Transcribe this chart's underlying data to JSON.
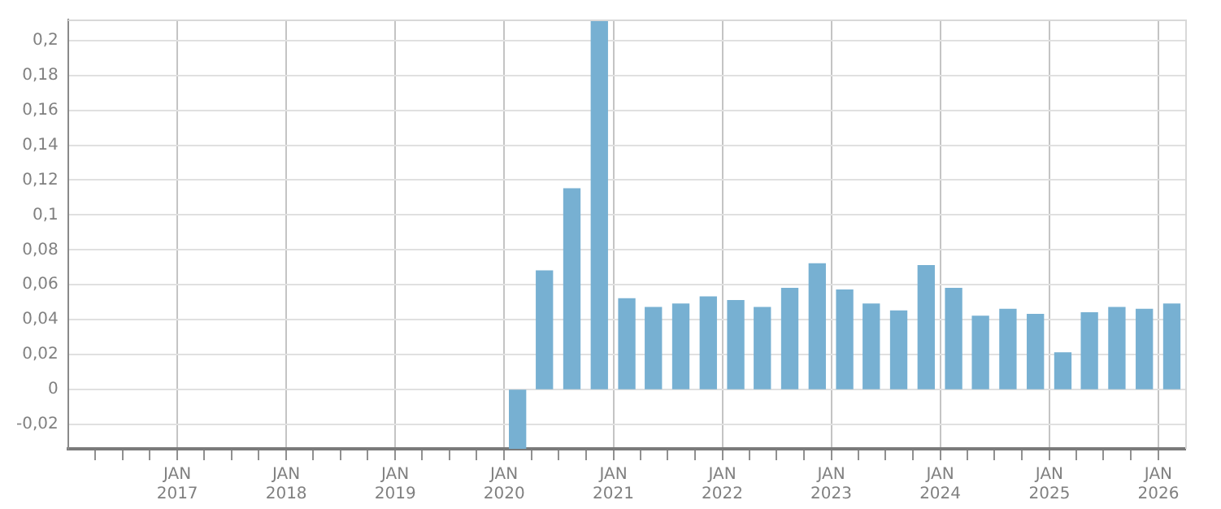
{
  "chart_data": {
    "type": "bar",
    "x": [
      "2020-02-15",
      "2020-05-15",
      "2020-08-15",
      "2020-11-15",
      "2021-02-15",
      "2021-05-15",
      "2021-08-15",
      "2021-11-15",
      "2022-02-15",
      "2022-05-15",
      "2022-08-15",
      "2022-11-15",
      "2023-02-15",
      "2023-05-15",
      "2023-08-15",
      "2023-11-15",
      "2024-02-15",
      "2024-05-15",
      "2024-08-15",
      "2024-11-15",
      "2025-02-15",
      "2025-05-15",
      "2025-08-15",
      "2025-11-15",
      "2026-02-15"
    ],
    "values": [
      -0.034,
      0.068,
      0.115,
      0.211,
      0.052,
      0.047,
      0.049,
      0.053,
      0.051,
      0.047,
      0.058,
      0.072,
      0.057,
      0.049,
      0.045,
      0.071,
      0.058,
      0.042,
      0.046,
      0.043,
      0.021,
      0.044,
      0.047,
      0.046,
      0.049
    ],
    "color": "#77b0d2",
    "xlim": [
      "2016-01-01",
      "2026-04-01"
    ],
    "xticks": [
      {
        "value": "2016-04-01",
        "label": null
      },
      {
        "value": "2016-07-01",
        "label": null
      },
      {
        "value": "2016-10-01",
        "label": null
      },
      {
        "value": "2017-01-01",
        "label": "JAN 2017"
      },
      {
        "value": "2017-04-01",
        "label": null
      },
      {
        "value": "2017-07-01",
        "label": null
      },
      {
        "value": "2017-10-01",
        "label": null
      },
      {
        "value": "2018-01-01",
        "label": "JAN 2018"
      },
      {
        "value": "2018-04-01",
        "label": null
      },
      {
        "value": "2018-07-01",
        "label": null
      },
      {
        "value": "2018-10-01",
        "label": null
      },
      {
        "value": "2019-01-01",
        "label": "JAN 2019"
      },
      {
        "value": "2019-04-01",
        "label": null
      },
      {
        "value": "2019-07-01",
        "label": null
      },
      {
        "value": "2019-10-01",
        "label": null
      },
      {
        "value": "2020-01-01",
        "label": "JAN 2020"
      },
      {
        "value": "2020-04-01",
        "label": null
      },
      {
        "value": "2020-07-01",
        "label": null
      },
      {
        "value": "2020-10-01",
        "label": null
      },
      {
        "value": "2021-01-01",
        "label": "JAN 2021"
      },
      {
        "value": "2021-04-01",
        "label": null
      },
      {
        "value": "2021-07-01",
        "label": null
      },
      {
        "value": "2021-10-01",
        "label": null
      },
      {
        "value": "2022-01-01",
        "label": "JAN 2022"
      },
      {
        "value": "2022-04-01",
        "label": null
      },
      {
        "value": "2022-07-01",
        "label": null
      },
      {
        "value": "2022-10-01",
        "label": null
      },
      {
        "value": "2023-01-01",
        "label": "JAN 2023"
      },
      {
        "value": "2023-04-01",
        "label": null
      },
      {
        "value": "2023-07-01",
        "label": null
      },
      {
        "value": "2023-10-01",
        "label": null
      },
      {
        "value": "2024-01-01",
        "label": "JAN 2024"
      },
      {
        "value": "2024-04-01",
        "label": null
      },
      {
        "value": "2024-07-01",
        "label": null
      },
      {
        "value": "2024-10-01",
        "label": null
      },
      {
        "value": "2025-01-01",
        "label": "JAN 2025"
      },
      {
        "value": "2025-04-01",
        "label": null
      },
      {
        "value": "2025-07-01",
        "label": null
      },
      {
        "value": "2025-10-01",
        "label": null
      },
      {
        "value": "2026-01-01",
        "label": "JAN 2026"
      }
    ],
    "ylim": [
      -0.034,
      0.212
    ],
    "yticks": [
      {
        "value": -0.02,
        "label": "-0,02"
      },
      {
        "value": 0,
        "label": "0"
      },
      {
        "value": 0.02,
        "label": "0,02"
      },
      {
        "value": 0.04,
        "label": "0,04"
      },
      {
        "value": 0.06,
        "label": "0,06"
      },
      {
        "value": 0.08,
        "label": "0,08"
      },
      {
        "value": 0.1,
        "label": "0,1"
      },
      {
        "value": 0.12,
        "label": "0,12"
      },
      {
        "value": 0.14,
        "label": "0,14"
      },
      {
        "value": 0.16,
        "label": "0,16"
      },
      {
        "value": 0.18,
        "label": "0,18"
      },
      {
        "value": 0.2,
        "label": "0,2"
      }
    ],
    "grid": true,
    "legend": false
  }
}
